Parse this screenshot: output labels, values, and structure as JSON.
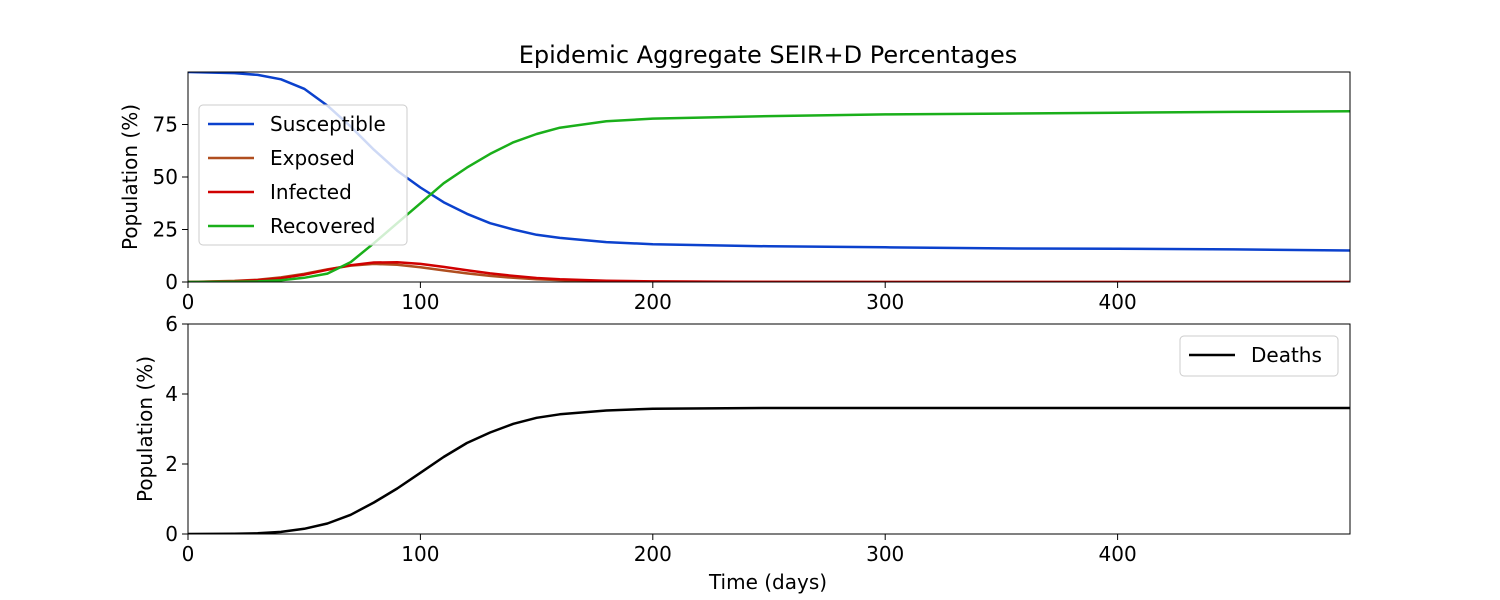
{
  "figure": {
    "title": "Epidemic Aggregate SEIR+D Percentages",
    "xlabel": "Time (days)"
  },
  "chart_data": [
    {
      "type": "line",
      "title": "Epidemic Aggregate SEIR+D Percentages",
      "xlabel": "",
      "ylabel": "Population (%)",
      "xlim": [
        0,
        500
      ],
      "ylim": [
        0,
        100
      ],
      "xticks": [
        0,
        100,
        200,
        300,
        400
      ],
      "yticks": [
        0,
        25,
        50,
        75
      ],
      "grid": false,
      "legend_position": "upper-left",
      "x": [
        0,
        20,
        30,
        40,
        50,
        60,
        70,
        80,
        90,
        100,
        110,
        120,
        130,
        140,
        150,
        160,
        180,
        200,
        250,
        300,
        350,
        400,
        450,
        500
      ],
      "series": [
        {
          "name": "Susceptible",
          "color": "#0b41cd",
          "values": [
            100,
            99.5,
            98.6,
            96.5,
            92,
            84,
            74,
            63,
            53,
            45,
            38,
            32.5,
            28,
            25,
            22.5,
            21,
            19,
            18,
            17,
            16.5,
            16,
            15.8,
            15.5,
            15
          ]
        },
        {
          "name": "Exposed",
          "color": "#b04e1f",
          "values": [
            0,
            0.5,
            1.1,
            2.2,
            3.9,
            6,
            7.8,
            8.6,
            8.2,
            7,
            5.5,
            4.1,
            2.9,
            2,
            1.3,
            0.9,
            0.4,
            0.2,
            0.05,
            0.02,
            0.01,
            0,
            0,
            0
          ]
        },
        {
          "name": "Infected",
          "color": "#d00000",
          "values": [
            0,
            0.4,
            0.9,
            1.8,
            3.5,
            5.8,
            8,
            9.3,
            9.4,
            8.6,
            7.2,
            5.6,
            4.1,
            2.9,
            1.9,
            1.3,
            0.6,
            0.3,
            0.05,
            0.02,
            0.01,
            0,
            0,
            0
          ]
        },
        {
          "name": "Recovered",
          "color": "#1aaf1a",
          "values": [
            0,
            0.1,
            0.3,
            0.8,
            2,
            4,
            9.5,
            18.5,
            28,
            37.5,
            47,
            54.5,
            61,
            66.5,
            70.5,
            73.5,
            76.5,
            77.8,
            79,
            79.8,
            80.2,
            80.6,
            81,
            81.3
          ]
        }
      ]
    },
    {
      "type": "line",
      "title": "",
      "xlabel": "Time (days)",
      "ylabel": "Population (%)",
      "xlim": [
        0,
        500
      ],
      "ylim": [
        0,
        6
      ],
      "xticks": [
        0,
        100,
        200,
        300,
        400
      ],
      "yticks": [
        0,
        2,
        4,
        6
      ],
      "grid": false,
      "legend_position": "upper-right",
      "x": [
        0,
        20,
        30,
        40,
        50,
        60,
        70,
        80,
        90,
        100,
        110,
        120,
        130,
        140,
        150,
        160,
        180,
        200,
        250,
        300,
        350,
        400,
        450,
        500
      ],
      "series": [
        {
          "name": "Deaths",
          "color": "#000000",
          "values": [
            0,
            0.005,
            0.02,
            0.06,
            0.15,
            0.3,
            0.55,
            0.9,
            1.3,
            1.75,
            2.2,
            2.6,
            2.9,
            3.15,
            3.32,
            3.42,
            3.53,
            3.58,
            3.6,
            3.6,
            3.6,
            3.6,
            3.6,
            3.6
          ]
        }
      ]
    }
  ]
}
